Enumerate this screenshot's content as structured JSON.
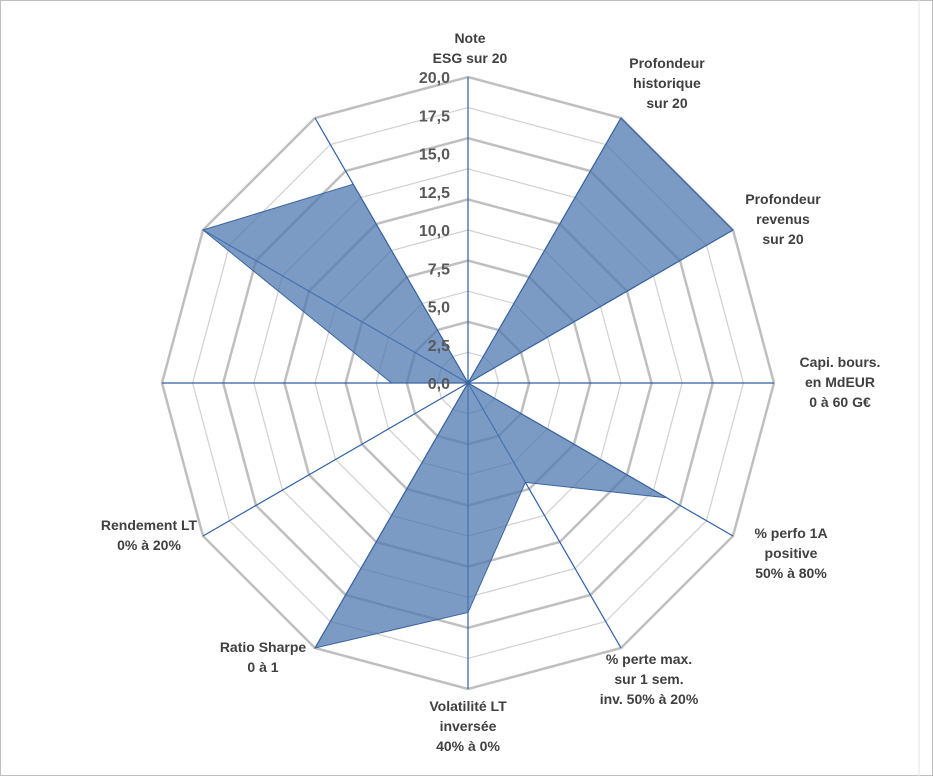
{
  "chart_data": {
    "type": "radar",
    "categories": [
      {
        "lines": [
          "Note",
          "ESG sur 20"
        ]
      },
      {
        "lines": [
          "Profondeur",
          "historique",
          "sur 20"
        ]
      },
      {
        "lines": [
          "Profondeur",
          "revenus",
          "sur 20"
        ]
      },
      {
        "lines": [
          "Capi. bours.",
          "en MdEUR",
          "0 à 60 G€"
        ]
      },
      {
        "lines": [
          "% perfo 1A",
          "positive",
          "50% à 80%"
        ]
      },
      {
        "lines": [
          "% perte max.",
          "sur 1 sem.",
          "inv. 50% à 20%"
        ]
      },
      {
        "lines": [
          "Volatilité LT",
          "inversée",
          "40% à 0%"
        ]
      },
      {
        "lines": [
          "Ratio Sharpe",
          "0 à 1"
        ]
      },
      {
        "lines": [
          "Rendement LT",
          "0% à 20%"
        ]
      },
      {
        "lines": [
          ""
        ]
      },
      {
        "lines": [
          ""
        ]
      },
      {
        "lines": [
          ""
        ]
      }
    ],
    "values": [
      0,
      20,
      20,
      0,
      15,
      7.5,
      15,
      20,
      0,
      5,
      20,
      15
    ],
    "rlim": [
      0,
      20
    ],
    "ticks": [
      "0,0",
      "2,5",
      "5,0",
      "7,5",
      "10,0",
      "12,5",
      "15,0",
      "17,5",
      "20,0"
    ],
    "colors": {
      "fill": "#4f78b0",
      "spoke": "#2e5fa8",
      "grid": "#bfbfbf"
    }
  }
}
